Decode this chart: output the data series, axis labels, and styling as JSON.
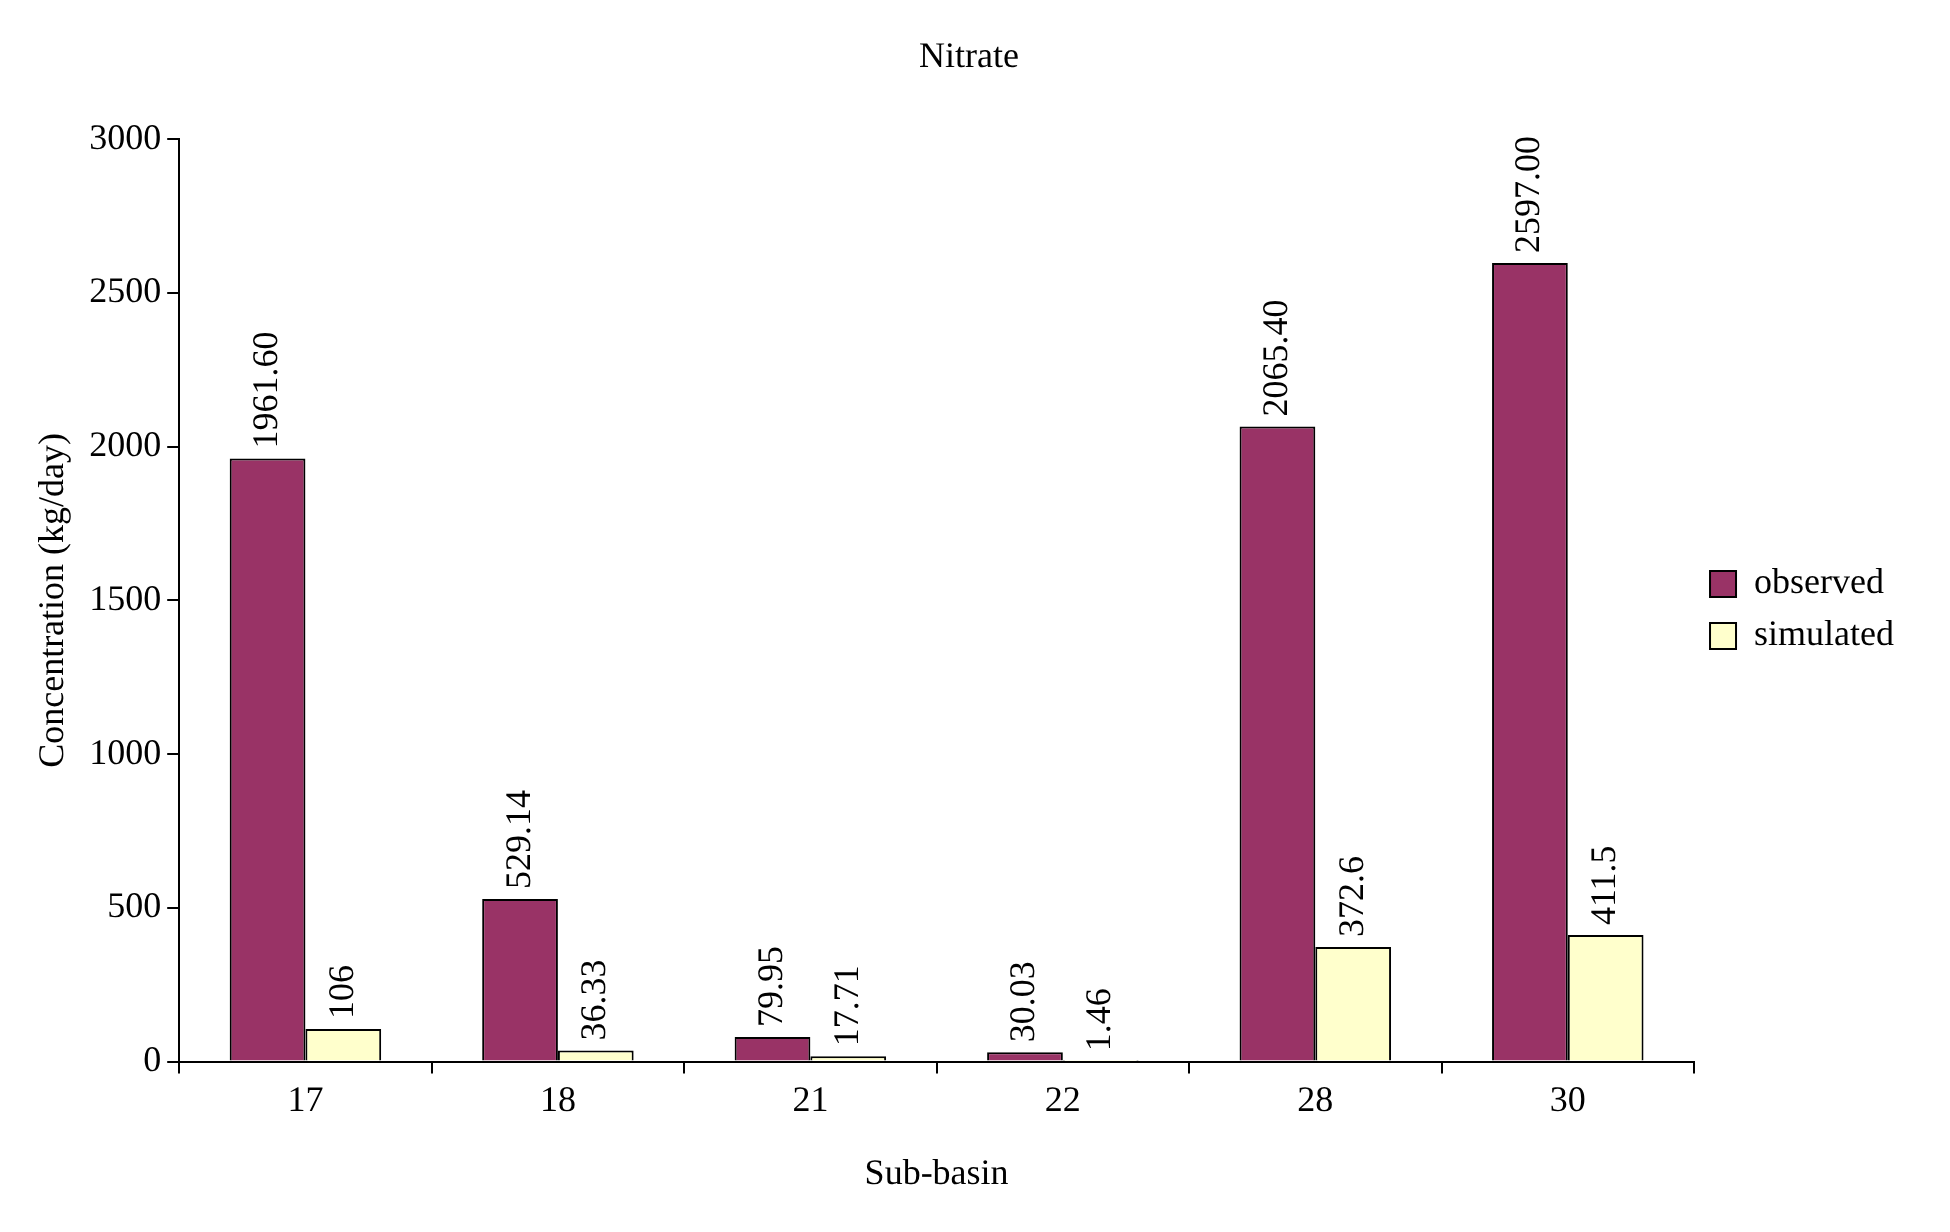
{
  "chart_data": {
    "type": "bar",
    "title": "Nitrate",
    "xlabel": "Sub-basin",
    "ylabel": "Concentration (kg/day)",
    "categories": [
      "17",
      "18",
      "21",
      "22",
      "28",
      "30"
    ],
    "series": [
      {
        "name": "observed",
        "color": "#993366",
        "values": [
          1961.6,
          529.14,
          79.95,
          30.03,
          2065.4,
          2597.0
        ],
        "value_labels": [
          "1961.60",
          "529.14",
          "79.95",
          "30.03",
          "2065.40",
          "2597.00"
        ]
      },
      {
        "name": "simulated",
        "color": "#ffffcc",
        "values": [
          106,
          36.33,
          17.71,
          1.46,
          372.6,
          411.5
        ],
        "value_labels": [
          "106",
          "36.33",
          "17.71",
          "1.46",
          "372.6",
          "411.5"
        ]
      }
    ],
    "ylim": [
      0,
      3000
    ],
    "yticks": [
      0,
      500,
      1000,
      1500,
      2000,
      2500,
      3000
    ],
    "grid": false,
    "legend": "right"
  }
}
